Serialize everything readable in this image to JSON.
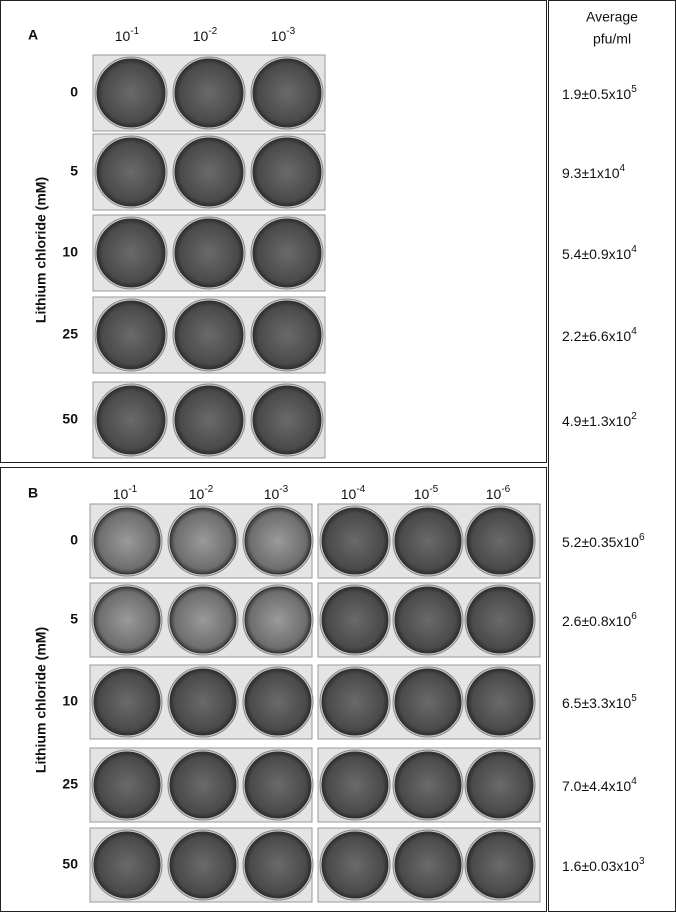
{
  "panel_a": {
    "label": "A",
    "dilutions": [
      {
        "base": "10",
        "exp": "-1"
      },
      {
        "base": "10",
        "exp": "-2"
      },
      {
        "base": "10",
        "exp": "-3"
      }
    ],
    "concentrations": [
      "0",
      "5",
      "10",
      "25",
      "50"
    ],
    "axis_label": "Lithium chloride (mM)"
  },
  "panel_b": {
    "label": "B",
    "dilutions": [
      {
        "base": "10",
        "exp": "-1"
      },
      {
        "base": "10",
        "exp": "-2"
      },
      {
        "base": "10",
        "exp": "-3"
      },
      {
        "base": "10",
        "exp": "-4"
      },
      {
        "base": "10",
        "exp": "-5"
      },
      {
        "base": "10",
        "exp": "-6"
      }
    ],
    "concentrations": [
      "0",
      "5",
      "10",
      "25",
      "50"
    ],
    "axis_label": "Lithium chloride (mM)"
  },
  "average_column": {
    "header": [
      "Average",
      "pfu/ml"
    ],
    "panel_a_values": [
      {
        "text": "1.9±0.5x10",
        "exp": "5"
      },
      {
        "text": "9.3±1x10",
        "exp": "4"
      },
      {
        "text": "5.4±0.9x10",
        "exp": "4"
      },
      {
        "text": "2.2±6.6x10",
        "exp": "4"
      },
      {
        "text": "4.9±1.3x10",
        "exp": "2"
      }
    ],
    "panel_b_values": [
      {
        "text": "5.2±0.35x10",
        "exp": "6"
      },
      {
        "text": "2.6±0.8x10",
        "exp": "6"
      },
      {
        "text": "6.5±3.3x10",
        "exp": "5"
      },
      {
        "text": "7.0±4.4x10",
        "exp": "4"
      },
      {
        "text": "1.6±0.03x10",
        "exp": "3"
      }
    ]
  }
}
